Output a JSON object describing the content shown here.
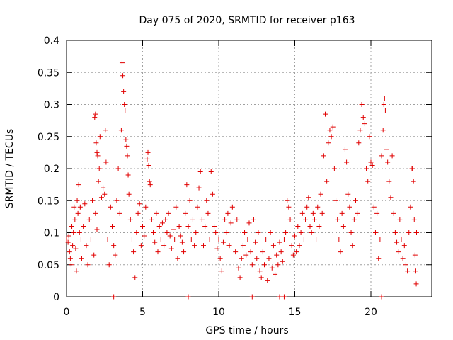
{
  "chart_data": {
    "type": "scatter",
    "title": "Day 075 of 2020, SRMTID for receiver p163",
    "xlabel": "GPS time / hours",
    "ylabel": "SRMTID / TECUs",
    "xlim": [
      0,
      24
    ],
    "ylim": [
      0,
      0.4
    ],
    "xticks": [
      0,
      5,
      10,
      15,
      20
    ],
    "xtick_labels": [
      "0",
      "5",
      "10",
      "15",
      "20"
    ],
    "yticks": [
      0,
      0.05,
      0.1,
      0.15,
      0.2,
      0.25,
      0.3,
      0.35,
      0.4
    ],
    "ytick_labels": [
      "0",
      "0.05",
      "0.1",
      "0.15",
      "0.2",
      "0.25",
      "0.3",
      "0.35",
      "0.4"
    ],
    "grid": true,
    "marker": "+",
    "color": "#e00000",
    "series": [
      {
        "name": "SRMTID",
        "points": [
          [
            0.0,
            0.09
          ],
          [
            0.1,
            0.085
          ],
          [
            0.15,
            0.095
          ],
          [
            0.2,
            0.07
          ],
          [
            0.25,
            0.06
          ],
          [
            0.3,
            0.05
          ],
          [
            0.35,
            0.11
          ],
          [
            0.4,
            0.08
          ],
          [
            0.45,
            0.1
          ],
          [
            0.5,
            0.14
          ],
          [
            0.55,
            0.12
          ],
          [
            0.6,
            0.075
          ],
          [
            0.65,
            0.04
          ],
          [
            0.7,
            0.15
          ],
          [
            0.75,
            0.13
          ],
          [
            0.8,
            0.175
          ],
          [
            0.85,
            0.1
          ],
          [
            0.9,
            0.14
          ],
          [
            0.95,
            0.09
          ],
          [
            1.0,
            0.06
          ],
          [
            1.1,
            0.11
          ],
          [
            1.2,
            0.145
          ],
          [
            1.3,
            0.08
          ],
          [
            1.4,
            0.05
          ],
          [
            1.5,
            0.12
          ],
          [
            1.6,
            0.09
          ],
          [
            1.7,
            0.15
          ],
          [
            1.8,
            0.065
          ],
          [
            1.9,
            0.13
          ],
          [
            2.0,
            0.105
          ],
          [
            1.85,
            0.28
          ],
          [
            1.9,
            0.285
          ],
          [
            1.95,
            0.24
          ],
          [
            2.0,
            0.225
          ],
          [
            2.05,
            0.22
          ],
          [
            2.1,
            0.18
          ],
          [
            2.15,
            0.2
          ],
          [
            2.2,
            0.25
          ],
          [
            2.3,
            0.155
          ],
          [
            2.4,
            0.17
          ],
          [
            2.5,
            0.16
          ],
          [
            2.55,
            0.26
          ],
          [
            2.6,
            0.21
          ],
          [
            2.7,
            0.09
          ],
          [
            2.8,
            0.05
          ],
          [
            2.9,
            0.14
          ],
          [
            3.0,
            0.11
          ],
          [
            3.1,
            0.08
          ],
          [
            3.2,
            0.065
          ],
          [
            3.3,
            0.15
          ],
          [
            3.4,
            0.2
          ],
          [
            3.5,
            0.13
          ],
          [
            3.6,
            0.26
          ],
          [
            3.65,
            0.365
          ],
          [
            3.7,
            0.345
          ],
          [
            3.75,
            0.32
          ],
          [
            3.8,
            0.3
          ],
          [
            3.85,
            0.29
          ],
          [
            3.9,
            0.245
          ],
          [
            3.95,
            0.235
          ],
          [
            4.0,
            0.22
          ],
          [
            4.05,
            0.19
          ],
          [
            4.1,
            0.16
          ],
          [
            4.2,
            0.12
          ],
          [
            4.3,
            0.09
          ],
          [
            4.4,
            0.07
          ],
          [
            4.5,
            0.03
          ],
          [
            4.6,
            0.1
          ],
          [
            4.7,
            0.13
          ],
          [
            4.8,
            0.145
          ],
          [
            4.9,
            0.08
          ],
          [
            5.0,
            0.11
          ],
          [
            5.1,
            0.095
          ],
          [
            5.2,
            0.14
          ],
          [
            5.3,
            0.215
          ],
          [
            5.35,
            0.225
          ],
          [
            5.4,
            0.205
          ],
          [
            5.45,
            0.18
          ],
          [
            5.5,
            0.175
          ],
          [
            5.6,
            0.12
          ],
          [
            5.7,
            0.1
          ],
          [
            5.8,
            0.085
          ],
          [
            5.9,
            0.13
          ],
          [
            6.0,
            0.07
          ],
          [
            6.1,
            0.11
          ],
          [
            6.2,
            0.09
          ],
          [
            6.3,
            0.115
          ],
          [
            6.4,
            0.08
          ],
          [
            6.5,
            0.12
          ],
          [
            6.6,
            0.1
          ],
          [
            6.7,
            0.13
          ],
          [
            6.8,
            0.095
          ],
          [
            6.9,
            0.075
          ],
          [
            7.0,
            0.105
          ],
          [
            7.1,
            0.09
          ],
          [
            7.2,
            0.14
          ],
          [
            7.3,
            0.06
          ],
          [
            7.4,
            0.11
          ],
          [
            7.5,
            0.095
          ],
          [
            7.6,
            0.085
          ],
          [
            7.7,
            0.07
          ],
          [
            7.8,
            0.13
          ],
          [
            7.9,
            0.175
          ],
          [
            8.0,
            0.11
          ],
          [
            8.1,
            0.15
          ],
          [
            8.2,
            0.09
          ],
          [
            8.3,
            0.12
          ],
          [
            8.4,
            0.08
          ],
          [
            8.5,
            0.1
          ],
          [
            8.6,
            0.14
          ],
          [
            8.7,
            0.17
          ],
          [
            8.8,
            0.195
          ],
          [
            8.9,
            0.12
          ],
          [
            9.0,
            0.08
          ],
          [
            9.1,
            0.11
          ],
          [
            9.2,
            0.15
          ],
          [
            9.3,
            0.13
          ],
          [
            9.4,
            0.09
          ],
          [
            9.5,
            0.195
          ],
          [
            9.6,
            0.16
          ],
          [
            9.7,
            0.11
          ],
          [
            9.8,
            0.1
          ],
          [
            9.9,
            0.075
          ],
          [
            10.0,
            0.09
          ],
          [
            10.1,
            0.06
          ],
          [
            10.2,
            0.04
          ],
          [
            10.3,
            0.085
          ],
          [
            10.4,
            0.12
          ],
          [
            10.5,
            0.1
          ],
          [
            10.6,
            0.13
          ],
          [
            10.7,
            0.08
          ],
          [
            10.8,
            0.115
          ],
          [
            10.9,
            0.14
          ],
          [
            11.0,
            0.09
          ],
          [
            11.1,
            0.07
          ],
          [
            11.2,
            0.12
          ],
          [
            11.3,
            0.045
          ],
          [
            11.4,
            0.03
          ],
          [
            11.5,
            0.06
          ],
          [
            11.6,
            0.08
          ],
          [
            11.7,
            0.1
          ],
          [
            11.8,
            0.065
          ],
          [
            11.9,
            0.09
          ],
          [
            12.0,
            0.115
          ],
          [
            12.1,
            0.07
          ],
          [
            12.2,
            0.05
          ],
          [
            12.3,
            0.12
          ],
          [
            12.4,
            0.085
          ],
          [
            12.5,
            0.06
          ],
          [
            12.6,
            0.1
          ],
          [
            12.7,
            0.04
          ],
          [
            12.8,
            0.03
          ],
          [
            12.9,
            0.07
          ],
          [
            13.0,
            0.05
          ],
          [
            13.1,
            0.09
          ],
          [
            13.2,
            0.025
          ],
          [
            13.3,
            0.06
          ],
          [
            13.4,
            0.1
          ],
          [
            13.5,
            0.045
          ],
          [
            13.6,
            0.08
          ],
          [
            13.7,
            0.035
          ],
          [
            13.8,
            0.065
          ],
          [
            13.9,
            0.05
          ],
          [
            14.0,
            0.085
          ],
          [
            14.1,
            0.07
          ],
          [
            14.2,
            0.055
          ],
          [
            14.3,
            0.09
          ],
          [
            14.4,
            0.1
          ],
          [
            14.5,
            0.15
          ],
          [
            14.6,
            0.14
          ],
          [
            14.7,
            0.12
          ],
          [
            14.8,
            0.08
          ],
          [
            14.9,
            0.065
          ],
          [
            15.0,
            0.095
          ],
          [
            15.1,
            0.07
          ],
          [
            15.2,
            0.11
          ],
          [
            15.3,
            0.08
          ],
          [
            15.4,
            0.1
          ],
          [
            15.5,
            0.13
          ],
          [
            15.6,
            0.09
          ],
          [
            15.7,
            0.12
          ],
          [
            15.8,
            0.14
          ],
          [
            15.9,
            0.155
          ],
          [
            16.0,
            0.11
          ],
          [
            16.1,
            0.1
          ],
          [
            16.2,
            0.13
          ],
          [
            16.3,
            0.12
          ],
          [
            16.4,
            0.09
          ],
          [
            16.5,
            0.14
          ],
          [
            16.6,
            0.11
          ],
          [
            16.7,
            0.16
          ],
          [
            16.8,
            0.13
          ],
          [
            16.9,
            0.22
          ],
          [
            17.0,
            0.285
          ],
          [
            17.1,
            0.18
          ],
          [
            17.2,
            0.24
          ],
          [
            17.3,
            0.26
          ],
          [
            17.4,
            0.25
          ],
          [
            17.5,
            0.265
          ],
          [
            17.6,
            0.2
          ],
          [
            17.7,
            0.15
          ],
          [
            17.8,
            0.12
          ],
          [
            17.9,
            0.09
          ],
          [
            18.0,
            0.07
          ],
          [
            18.1,
            0.13
          ],
          [
            18.2,
            0.11
          ],
          [
            18.3,
            0.23
          ],
          [
            18.4,
            0.21
          ],
          [
            18.5,
            0.16
          ],
          [
            18.6,
            0.14
          ],
          [
            18.7,
            0.1
          ],
          [
            18.8,
            0.08
          ],
          [
            18.9,
            0.12
          ],
          [
            19.0,
            0.15
          ],
          [
            19.1,
            0.13
          ],
          [
            19.2,
            0.24
          ],
          [
            19.3,
            0.26
          ],
          [
            19.4,
            0.3
          ],
          [
            19.5,
            0.28
          ],
          [
            19.6,
            0.27
          ],
          [
            19.7,
            0.2
          ],
          [
            19.8,
            0.18
          ],
          [
            19.9,
            0.25
          ],
          [
            20.0,
            0.21
          ],
          [
            20.1,
            0.205
          ],
          [
            20.2,
            0.14
          ],
          [
            20.3,
            0.1
          ],
          [
            20.4,
            0.13
          ],
          [
            20.5,
            0.06
          ],
          [
            20.6,
            0.09
          ],
          [
            20.7,
            0.22
          ],
          [
            20.8,
            0.26
          ],
          [
            20.85,
            0.3
          ],
          [
            20.9,
            0.31
          ],
          [
            20.95,
            0.29
          ],
          [
            21.0,
            0.23
          ],
          [
            21.1,
            0.21
          ],
          [
            21.2,
            0.18
          ],
          [
            21.3,
            0.155
          ],
          [
            21.4,
            0.22
          ],
          [
            21.5,
            0.13
          ],
          [
            21.6,
            0.1
          ],
          [
            21.7,
            0.085
          ],
          [
            21.8,
            0.07
          ],
          [
            21.9,
            0.12
          ],
          [
            22.0,
            0.09
          ],
          [
            22.1,
            0.06
          ],
          [
            22.2,
            0.08
          ],
          [
            22.3,
            0.05
          ],
          [
            22.4,
            0.04
          ],
          [
            22.5,
            0.1
          ],
          [
            22.6,
            0.14
          ],
          [
            22.7,
            0.2
          ],
          [
            22.75,
            0.2
          ],
          [
            22.8,
            0.18
          ],
          [
            22.85,
            0.12
          ],
          [
            22.9,
            0.065
          ],
          [
            22.95,
            0.04
          ],
          [
            22.98,
            0.02
          ],
          [
            23.0,
            0.1
          ]
        ]
      },
      {
        "name": "zero-markers",
        "points": [
          [
            3.1,
            0
          ],
          [
            8.0,
            0
          ],
          [
            12.2,
            0
          ],
          [
            14.0,
            0
          ],
          [
            14.3,
            0
          ],
          [
            20.7,
            0
          ]
        ]
      }
    ]
  }
}
